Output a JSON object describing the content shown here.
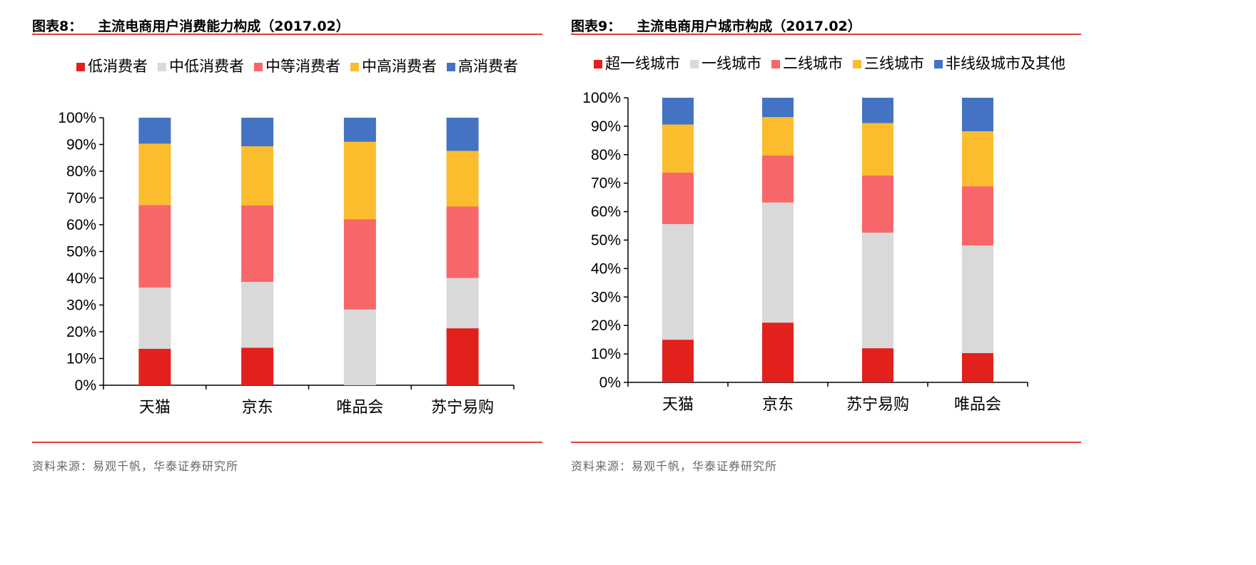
{
  "chart_data": [
    {
      "type": "bar",
      "stacked": true,
      "figure_label": "图表8：",
      "title": "主流电商用户消费能力构成（2017.02）",
      "source": "资料来源：易观千帆，华泰证券研究所",
      "categories": [
        "天猫",
        "京东",
        "唯品会",
        "苏宁易购"
      ],
      "ylim": [
        0,
        100
      ],
      "yticks": [
        "0%",
        "10%",
        "20%",
        "30%",
        "40%",
        "50%",
        "60%",
        "70%",
        "80%",
        "90%",
        "100%"
      ],
      "legend_position": "top",
      "grid": false,
      "series": [
        {
          "name": "低消费者",
          "color": "#e2211c",
          "values": [
            13.6,
            14.0,
            0,
            21.3
          ]
        },
        {
          "name": "中低消费者",
          "color": "#d9d9d9",
          "values": [
            22.9,
            24.6,
            28.3,
            18.8
          ]
        },
        {
          "name": "中等消费者",
          "color": "#f7676a",
          "values": [
            30.9,
            28.6,
            33.7,
            26.7
          ]
        },
        {
          "name": "中高消费者",
          "color": "#fbbd2e",
          "values": [
            22.9,
            22.1,
            29.0,
            20.8
          ]
        },
        {
          "name": "高消费者",
          "color": "#4473c3",
          "values": [
            9.7,
            10.7,
            9.0,
            12.4
          ]
        }
      ]
    },
    {
      "type": "bar",
      "stacked": true,
      "figure_label": "图表9：",
      "title": "主流电商用户城市构成（2017.02）",
      "source": "资料来源：易观千帆，华泰证券研究所",
      "categories": [
        "天猫",
        "京东",
        "苏宁易购",
        "唯品会"
      ],
      "ylim": [
        0,
        100
      ],
      "yticks": [
        "0%",
        "10%",
        "20%",
        "30%",
        "40%",
        "50%",
        "60%",
        "70%",
        "80%",
        "90%",
        "100%"
      ],
      "legend_position": "top",
      "grid": false,
      "series": [
        {
          "name": "超一线城市",
          "color": "#e2211c",
          "values": [
            15.0,
            21.0,
            12.0,
            10.3
          ]
        },
        {
          "name": "一线城市",
          "color": "#d9d9d9",
          "values": [
            40.6,
            42.2,
            40.6,
            37.8
          ]
        },
        {
          "name": "二线城市",
          "color": "#f7676a",
          "values": [
            18.1,
            16.5,
            20.1,
            20.8
          ]
        },
        {
          "name": "三线城市",
          "color": "#fbbd2e",
          "values": [
            16.9,
            13.5,
            18.4,
            19.3
          ]
        },
        {
          "name": "非线级城市及其他",
          "color": "#4473c3",
          "values": [
            9.4,
            6.8,
            8.9,
            11.8
          ]
        }
      ]
    }
  ]
}
